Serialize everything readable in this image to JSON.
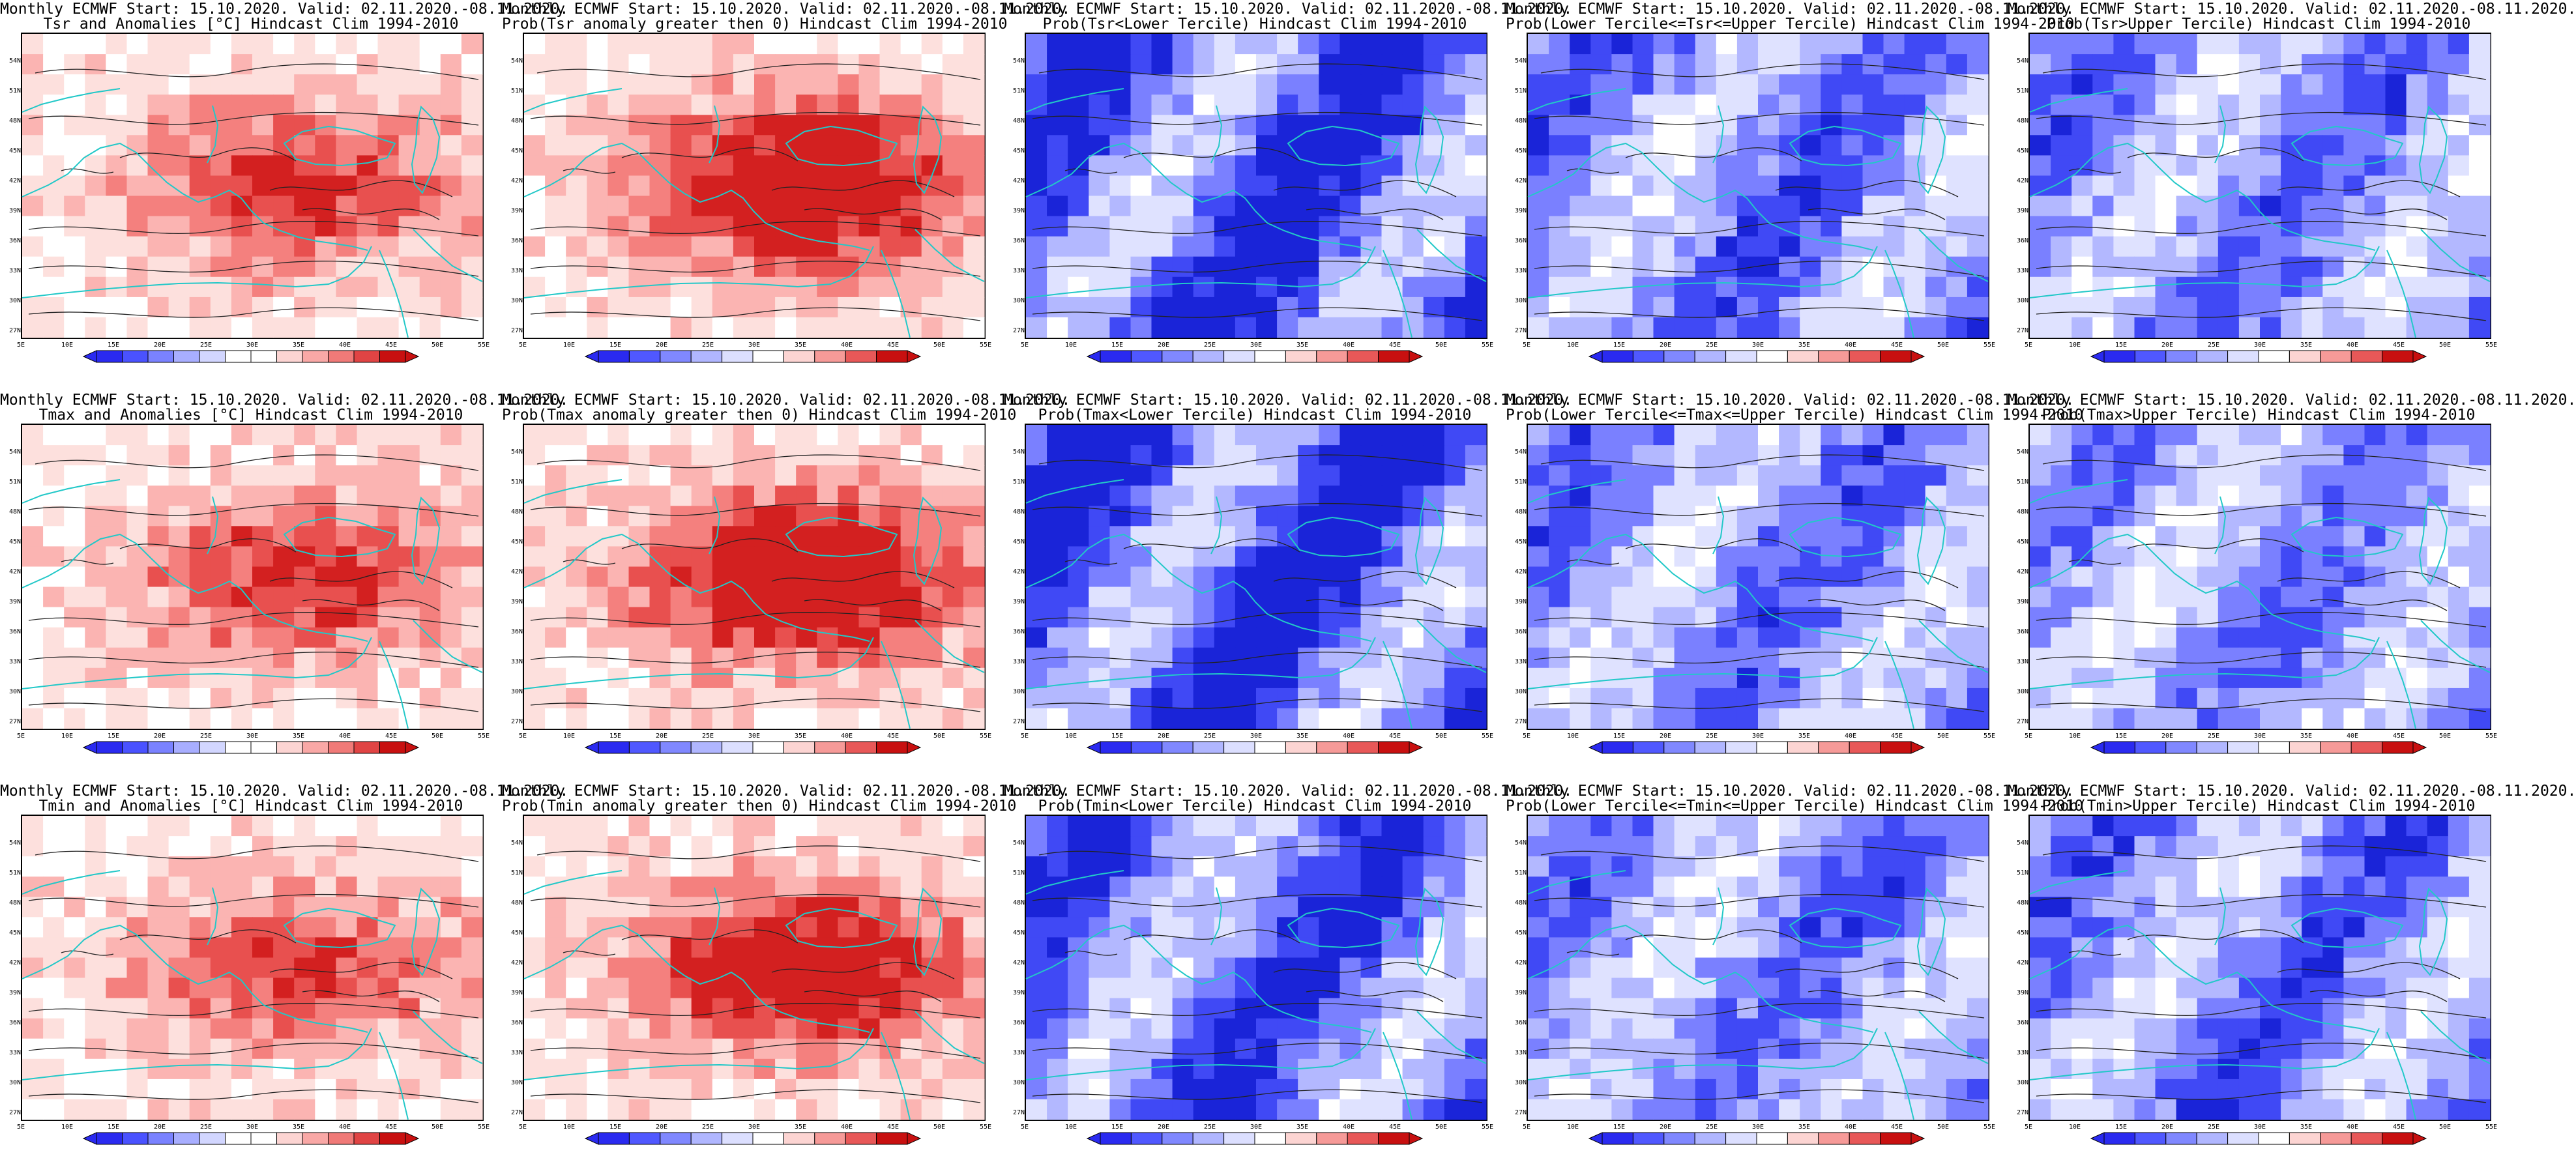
{
  "figure": {
    "colors": {
      "background": "#ffffff",
      "coastline": "#22c8c8",
      "contour": "#222222",
      "warm_scale": [
        "#ffffff",
        "#fde0dd",
        "#fbb4b2",
        "#f4807e",
        "#e8504f",
        "#d32020"
      ],
      "cool_scale": [
        "#ffffff",
        "#dfe2ff",
        "#b3b8ff",
        "#7a80ff",
        "#4049f5",
        "#1a24d8"
      ]
    },
    "panels": [
      {
        "row": 0,
        "col": 0,
        "title_line1": "Monthly ECMWF Start: 15.10.2020. Valid: 02.11.2020.-08.11.2020.",
        "title_line2": "Tsr and Anomalies [°C] Hindcast Clim 1994-2010",
        "palette": "anomaly",
        "tint": "warm",
        "tint_strength": 0.45,
        "lat_labels": [
          "27N",
          "30N",
          "33N",
          "36N",
          "39N",
          "42N",
          "45N",
          "48N",
          "51N",
          "54N"
        ],
        "lon_labels": [
          "5E",
          "10E",
          "15E",
          "20E",
          "25E",
          "30E",
          "35E",
          "40E",
          "45E",
          "50E",
          "55E"
        ],
        "colorbar_labels": []
      },
      {
        "row": 0,
        "col": 1,
        "title_line1": "Monthly ECMWF Start: 15.10.2020. Valid: 02.11.2020.-08.11.2020.",
        "title_line2": "Prob(Tsr anomaly greater then 0) Hindcast Clim 1994-2010",
        "palette": "probability",
        "tint": "warm",
        "tint_strength": 0.65,
        "lat_labels": [
          "27N",
          "30N",
          "33N",
          "36N",
          "39N",
          "42N",
          "45N",
          "48N",
          "51N",
          "54N"
        ],
        "lon_labels": [
          "5E",
          "10E",
          "15E",
          "20E",
          "25E",
          "30E",
          "35E",
          "40E",
          "45E",
          "50E",
          "55E"
        ],
        "colorbar_labels": []
      },
      {
        "row": 0,
        "col": 2,
        "title_line1": "Monthly ECMWF Start: 15.10.2020. Valid: 02.11.2020.-08.11.2020.",
        "title_line2": "Prob(Tsr<Lower Tercile) Hindcast Clim 1994-2010",
        "palette": "probability",
        "tint": "cool",
        "tint_strength": 0.85,
        "lat_labels": [
          "27N",
          "30N",
          "33N",
          "36N",
          "39N",
          "42N",
          "45N",
          "48N",
          "51N",
          "54N"
        ],
        "lon_labels": [
          "5E",
          "10E",
          "15E",
          "20E",
          "25E",
          "30E",
          "35E",
          "40E",
          "45E",
          "50E",
          "55E"
        ],
        "colorbar_labels": []
      },
      {
        "row": 0,
        "col": 3,
        "title_line1": "Monthly ECMWF Start: 15.10.2020. Valid: 02.11.2020.-08.11.2020.",
        "title_line2": "Prob(Lower Tercile<=Tsr<=Upper Tercile) Hindcast Clim 1994-2010",
        "palette": "probability",
        "tint": "cool",
        "tint_strength": 0.6,
        "lat_labels": [
          "27N",
          "30N",
          "33N",
          "36N",
          "39N",
          "42N",
          "45N",
          "48N",
          "51N",
          "54N"
        ],
        "lon_labels": [
          "5E",
          "10E",
          "15E",
          "20E",
          "25E",
          "30E",
          "35E",
          "40E",
          "45E",
          "50E",
          "55E"
        ],
        "colorbar_labels": []
      },
      {
        "row": 0,
        "col": 4,
        "title_line1": "Monthly ECMWF Start: 15.10.2020. Valid: 02.11.2020.-08.11.2020.",
        "title_line2": "Prob(Tsr>Upper Tercile) Hindcast Clim 1994-2010",
        "palette": "probability",
        "tint": "cool",
        "tint_strength": 0.55,
        "lat_labels": [
          "27N",
          "30N",
          "33N",
          "36N",
          "39N",
          "42N",
          "45N",
          "48N",
          "51N",
          "54N"
        ],
        "lon_labels": [
          "5E",
          "10E",
          "15E",
          "20E",
          "25E",
          "30E",
          "35E",
          "40E",
          "45E",
          "50E",
          "55E"
        ],
        "colorbar_labels": []
      },
      {
        "row": 1,
        "col": 0,
        "title_line1": "Monthly ECMWF Start: 15.10.2020. Valid: 02.11.2020.-08.11.2020.",
        "title_line2": "Tmax and Anomalies [°C] Hindcast Clim 1994-2010",
        "palette": "anomaly",
        "tint": "warm",
        "tint_strength": 0.45,
        "lat_labels": [
          "27N",
          "30N",
          "33N",
          "36N",
          "39N",
          "42N",
          "45N",
          "48N",
          "51N",
          "54N"
        ],
        "lon_labels": [
          "5E",
          "10E",
          "15E",
          "20E",
          "25E",
          "30E",
          "35E",
          "40E",
          "45E",
          "50E",
          "55E"
        ],
        "colorbar_labels": []
      },
      {
        "row": 1,
        "col": 1,
        "title_line1": "Monthly ECMWF Start: 15.10.2020. Valid: 02.11.2020.-08.11.2020.",
        "title_line2": "Prob(Tmax anomaly greater then 0) Hindcast Clim 1994-2010",
        "palette": "probability",
        "tint": "warm",
        "tint_strength": 0.7,
        "lat_labels": [
          "27N",
          "30N",
          "33N",
          "36N",
          "39N",
          "42N",
          "45N",
          "48N",
          "51N",
          "54N"
        ],
        "lon_labels": [
          "5E",
          "10E",
          "15E",
          "20E",
          "25E",
          "30E",
          "35E",
          "40E",
          "45E",
          "50E",
          "55E"
        ],
        "colorbar_labels": []
      },
      {
        "row": 1,
        "col": 2,
        "title_line1": "Monthly ECMWF Start: 15.10.2020. Valid: 02.11.2020.-08.11.2020.",
        "title_line2": "Prob(Tmax<Lower Tercile) Hindcast Clim 1994-2010",
        "palette": "probability",
        "tint": "cool",
        "tint_strength": 0.9,
        "lat_labels": [
          "27N",
          "30N",
          "33N",
          "36N",
          "39N",
          "42N",
          "45N",
          "48N",
          "51N",
          "54N"
        ],
        "lon_labels": [
          "5E",
          "10E",
          "15E",
          "20E",
          "25E",
          "30E",
          "35E",
          "40E",
          "45E",
          "50E",
          "55E"
        ],
        "colorbar_labels": []
      },
      {
        "row": 1,
        "col": 3,
        "title_line1": "Monthly ECMWF Start: 15.10.2020. Valid: 02.11.2020.-08.11.2020.",
        "title_line2": "Prob(Lower Tercile<=Tmax<=Upper Tercile) Hindcast Clim 1994-2010",
        "palette": "probability",
        "tint": "cool",
        "tint_strength": 0.55,
        "lat_labels": [
          "27N",
          "30N",
          "33N",
          "36N",
          "39N",
          "42N",
          "45N",
          "48N",
          "51N",
          "54N"
        ],
        "lon_labels": [
          "5E",
          "10E",
          "15E",
          "20E",
          "25E",
          "30E",
          "35E",
          "40E",
          "45E",
          "50E",
          "55E"
        ],
        "colorbar_labels": []
      },
      {
        "row": 1,
        "col": 4,
        "title_line1": "Monthly ECMWF Start: 15.10.2020. Valid: 02.11.2020.-08.11.2020.",
        "title_line2": "Prob(Tmax>Upper Tercile) Hindcast Clim 1994-2010",
        "palette": "probability",
        "tint": "cool",
        "tint_strength": 0.5,
        "lat_labels": [
          "27N",
          "30N",
          "33N",
          "36N",
          "39N",
          "42N",
          "45N",
          "48N",
          "51N",
          "54N"
        ],
        "lon_labels": [
          "5E",
          "10E",
          "15E",
          "20E",
          "25E",
          "30E",
          "35E",
          "40E",
          "45E",
          "50E",
          "55E"
        ],
        "colorbar_labels": []
      },
      {
        "row": 2,
        "col": 0,
        "title_line1": "Monthly ECMWF Start: 15.10.2020. Valid: 02.11.2020.-08.11.2020.",
        "title_line2": "Tmin and Anomalies [°C] Hindcast Clim 1994-2010",
        "palette": "anomaly",
        "tint": "warm",
        "tint_strength": 0.4,
        "lat_labels": [
          "27N",
          "30N",
          "33N",
          "36N",
          "39N",
          "42N",
          "45N",
          "48N",
          "51N",
          "54N"
        ],
        "lon_labels": [
          "5E",
          "10E",
          "15E",
          "20E",
          "25E",
          "30E",
          "35E",
          "40E",
          "45E",
          "50E",
          "55E"
        ],
        "colorbar_labels": []
      },
      {
        "row": 2,
        "col": 1,
        "title_line1": "Monthly ECMWF Start: 15.10.2020. Valid: 02.11.2020.-08.11.2020.",
        "title_line2": "Prob(Tmin anomaly greater then 0) Hindcast Clim 1994-2010",
        "palette": "probability",
        "tint": "warm",
        "tint_strength": 0.6,
        "lat_labels": [
          "27N",
          "30N",
          "33N",
          "36N",
          "39N",
          "42N",
          "45N",
          "48N",
          "51N",
          "54N"
        ],
        "lon_labels": [
          "5E",
          "10E",
          "15E",
          "20E",
          "25E",
          "30E",
          "35E",
          "40E",
          "45E",
          "50E",
          "55E"
        ],
        "colorbar_labels": []
      },
      {
        "row": 2,
        "col": 2,
        "title_line1": "Monthly ECMWF Start: 15.10.2020. Valid: 02.11.2020.-08.11.2020.",
        "title_line2": "Prob(Tmin<Lower Tercile) Hindcast Clim 1994-2010",
        "palette": "probability",
        "tint": "cool",
        "tint_strength": 0.75,
        "lat_labels": [
          "27N",
          "30N",
          "33N",
          "36N",
          "39N",
          "42N",
          "45N",
          "48N",
          "51N",
          "54N"
        ],
        "lon_labels": [
          "5E",
          "10E",
          "15E",
          "20E",
          "25E",
          "30E",
          "35E",
          "40E",
          "45E",
          "50E",
          "55E"
        ],
        "colorbar_labels": []
      },
      {
        "row": 2,
        "col": 3,
        "title_line1": "Monthly ECMWF Start: 15.10.2020. Valid: 02.11.2020.-08.11.2020.",
        "title_line2": "Prob(Lower Tercile<=Tmin<=Upper Tercile) Hindcast Clim 1994-2010",
        "palette": "probability",
        "tint": "cool",
        "tint_strength": 0.55,
        "lat_labels": [
          "27N",
          "30N",
          "33N",
          "36N",
          "39N",
          "42N",
          "45N",
          "48N",
          "51N",
          "54N"
        ],
        "lon_labels": [
          "5E",
          "10E",
          "15E",
          "20E",
          "25E",
          "30E",
          "35E",
          "40E",
          "45E",
          "50E",
          "55E"
        ],
        "colorbar_labels": []
      },
      {
        "row": 2,
        "col": 4,
        "title_line1": "Monthly ECMWF Start: 15.10.2020. Valid: 02.11.2020.-08.11.2020.",
        "title_line2": "Prob(Tmin>Upper Tercile) Hindcast Clim 1994-2010",
        "palette": "probability",
        "tint": "cool",
        "tint_strength": 0.6,
        "lat_labels": [
          "27N",
          "30N",
          "33N",
          "36N",
          "39N",
          "42N",
          "45N",
          "48N",
          "51N",
          "54N"
        ],
        "lon_labels": [
          "5E",
          "10E",
          "15E",
          "20E",
          "25E",
          "30E",
          "35E",
          "40E",
          "45E",
          "50E",
          "55E"
        ],
        "colorbar_labels": []
      }
    ]
  }
}
